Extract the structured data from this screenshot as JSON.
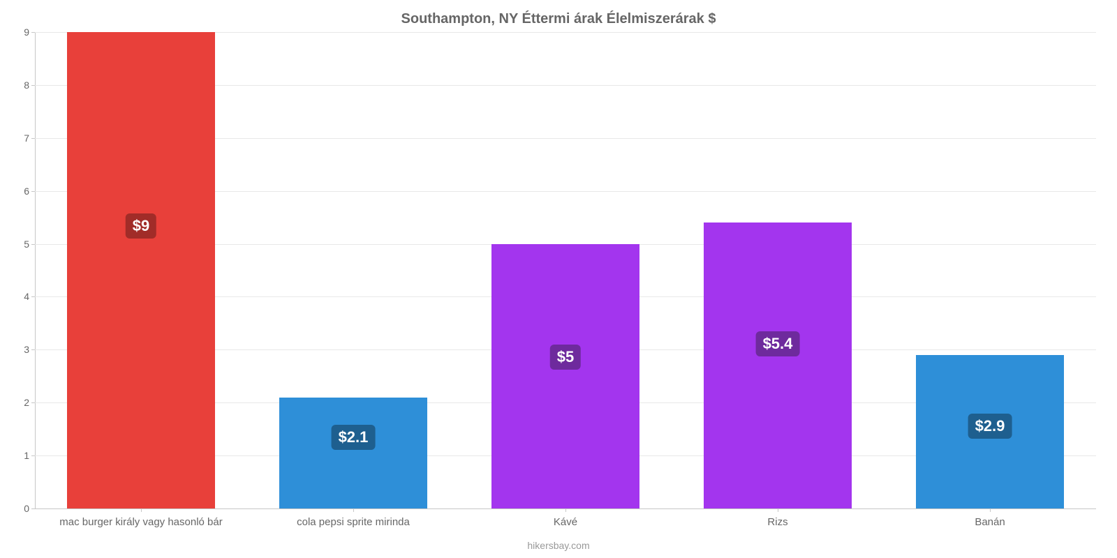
{
  "chart": {
    "type": "bar",
    "title": "Southampton, NY Éttermi árak Élelmiszerárak $",
    "title_fontsize": 20,
    "title_color": "#666666",
    "footer": "hikersbay.com",
    "footer_color": "#999999",
    "footer_fontsize": 14,
    "background_color": "#ffffff",
    "grid_color": "#e8e8e8",
    "axis_color": "#c7c7c7",
    "ylim": [
      0,
      9
    ],
    "yticks": [
      0,
      1,
      2,
      3,
      4,
      5,
      6,
      7,
      8,
      9
    ],
    "ytick_fontsize": 14,
    "ytick_color": "#666666",
    "xtick_fontsize": 15,
    "xtick_color": "#666666",
    "bar_width_pct": 14,
    "value_label_fontsize": 22,
    "value_label_color": "#ffffff",
    "categories": [
      "mac burger király vagy hasonló bár",
      "cola pepsi sprite mirinda",
      "Kávé",
      "Rizs",
      "Banán"
    ],
    "values": [
      9,
      2.1,
      5,
      5.4,
      2.9
    ],
    "value_labels": [
      "$9",
      "$2.1",
      "$5",
      "$5.4",
      "$2.9"
    ],
    "bar_colors": [
      "#e8403a",
      "#2e8fd8",
      "#a335ee",
      "#a335ee",
      "#2e8fd8"
    ],
    "badge_colors": [
      "#a12c28",
      "#1e5f8f",
      "#6e2a9d",
      "#6e2a9d",
      "#1e5f8f"
    ]
  }
}
